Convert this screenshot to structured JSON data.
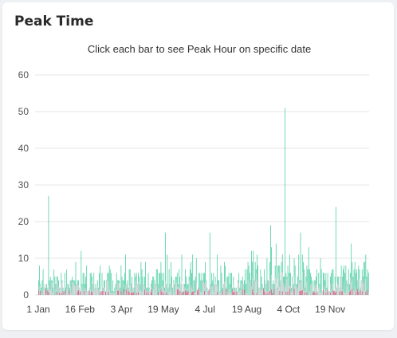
{
  "card": {
    "title": "Peak Time"
  },
  "chart_data": {
    "type": "bar",
    "title": "Click each bar to see Peak Hour on specific date",
    "xlabel": "",
    "ylabel": "",
    "ylim": [
      0,
      60
    ],
    "yticks": [
      "0",
      "10",
      "20",
      "30",
      "40",
      "50",
      "60"
    ],
    "xtick_labels": [
      "1 Jan",
      "16 Feb",
      "3 Apr",
      "19 May",
      "4 Jul",
      "19 Aug",
      "4 Oct",
      "19 Nov"
    ],
    "grid": true,
    "legend": "none",
    "days": 365,
    "peaks": [
      {
        "date": "12 Jan",
        "value": 27
      },
      {
        "date": "17 Feb",
        "value": 12
      },
      {
        "date": "7 Apr",
        "value": 11
      },
      {
        "date": "21 May",
        "value": 17
      },
      {
        "date": "20 Jun",
        "value": 11
      },
      {
        "date": "9 Jul",
        "value": 17
      },
      {
        "date": "24 Aug",
        "value": 12
      },
      {
        "date": "14 Sep",
        "value": 19
      },
      {
        "date": "20 Sep",
        "value": 14
      },
      {
        "date": "30 Sep",
        "value": 51
      },
      {
        "date": "17 Oct",
        "value": 17
      },
      {
        "date": "8 Nov",
        "value": 10
      },
      {
        "date": "25 Nov",
        "value": 24
      },
      {
        "date": "28 Dec",
        "value": 11
      }
    ],
    "series": [
      {
        "name": "",
        "color": "#4fcfa4"
      },
      {
        "name": "",
        "color": "#d0d3d6"
      },
      {
        "name": "",
        "color": "#e8567f"
      }
    ]
  }
}
